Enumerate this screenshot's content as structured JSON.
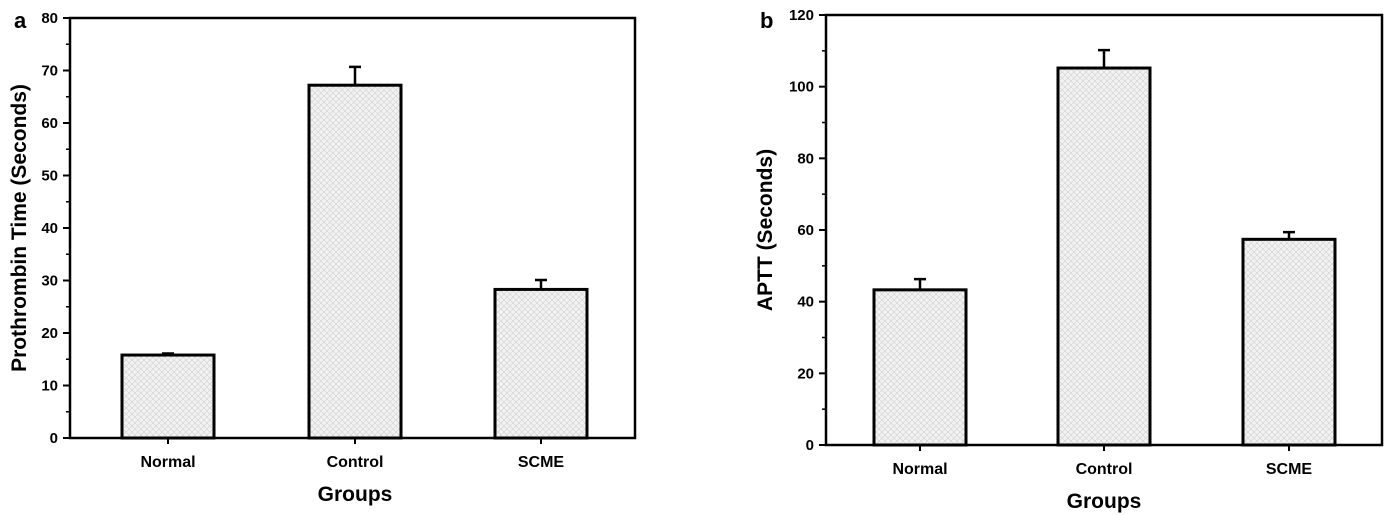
{
  "chart_data": [
    {
      "type": "bar",
      "panel": "a",
      "categories": [
        "Normal",
        "Control",
        "SCME"
      ],
      "values": [
        15.8,
        67.2,
        28.3
      ],
      "errors": [
        0.3,
        3.5,
        1.8
      ],
      "title": "",
      "xlabel": "Groups",
      "ylabel": "Prothrombin Time (Seconds)",
      "ylim": [
        0,
        80
      ],
      "yticks": [
        "0",
        "10",
        "20",
        "30",
        "40",
        "50",
        "60",
        "70",
        "80"
      ],
      "ytick_values": [
        0,
        10,
        20,
        30,
        40,
        50,
        60,
        70,
        80
      ],
      "grid": false,
      "bar_fill": "#ececec"
    },
    {
      "type": "bar",
      "panel": "b",
      "categories": [
        "Normal",
        "Control",
        "SCME"
      ],
      "values": [
        43.3,
        105.2,
        57.4
      ],
      "errors": [
        3.0,
        5.0,
        2.0
      ],
      "title": "",
      "xlabel": "Groups",
      "ylabel": "APTT (Seconds)",
      "ylim": [
        0,
        120
      ],
      "yticks": [
        "0",
        "20",
        "40",
        "60",
        "80",
        "100",
        "120"
      ],
      "ytick_values": [
        0,
        20,
        40,
        60,
        80,
        100,
        120
      ],
      "grid": false,
      "bar_fill": "#ececec"
    }
  ]
}
